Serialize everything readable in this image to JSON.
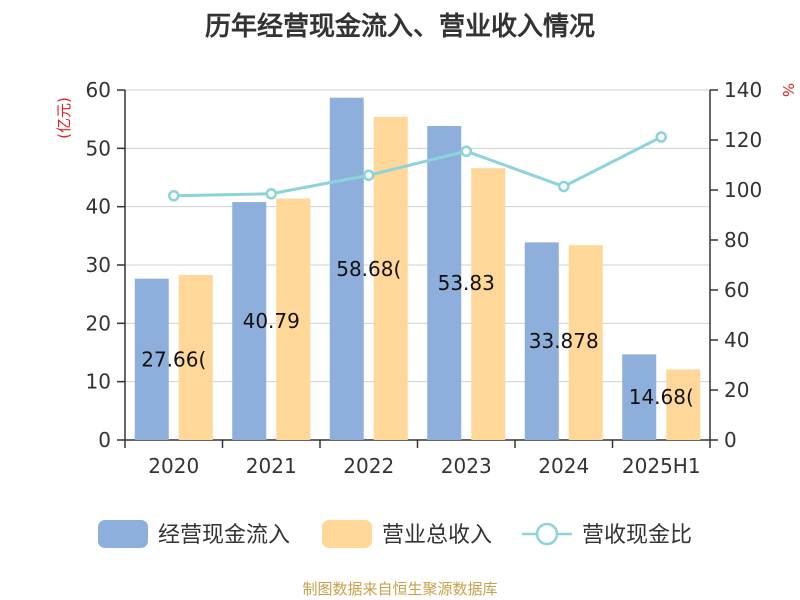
{
  "chart_data": {
    "type": "bar",
    "title": "历年经营现金流入、营业收入情况",
    "categories": [
      "2020",
      "2021",
      "2022",
      "2023",
      "2024",
      "2025H1"
    ],
    "series": [
      {
        "name": "经营现金流入",
        "axis": "left",
        "color": "#8EAFDB",
        "values": [
          27.66,
          40.79,
          58.68,
          53.83,
          33.878,
          14.68
        ],
        "labels": [
          "27.66(",
          "40.79",
          "58.68(",
          "53.83",
          "33.878",
          "14.68("
        ]
      },
      {
        "name": "营业总收入",
        "axis": "left",
        "color": "#FFD899",
        "values": [
          28.3,
          41.4,
          55.4,
          46.6,
          33.4,
          12.1
        ]
      },
      {
        "name": "营收现金比",
        "axis": "right",
        "type": "line",
        "color": "#8DD3DA",
        "values": [
          97.7,
          98.5,
          105.9,
          115.5,
          101.4,
          121.2
        ]
      }
    ],
    "y_left": {
      "label": "(亿元)",
      "min": 0,
      "max": 60,
      "ticks": [
        0,
        10,
        20,
        30,
        40,
        50,
        60
      ]
    },
    "y_right": {
      "label": "%",
      "min": 0,
      "max": 140,
      "ticks": [
        0,
        20,
        40,
        60,
        80,
        100,
        120,
        140
      ]
    },
    "grid": true,
    "legend_position": "bottom"
  },
  "footer": {
    "text": "制图数据来自恒生聚源数据库",
    "color": "#C7A04A"
  },
  "axis_colors": {
    "axis": "#333333",
    "grid": "#D0D0D0",
    "unit": "#E02020"
  }
}
